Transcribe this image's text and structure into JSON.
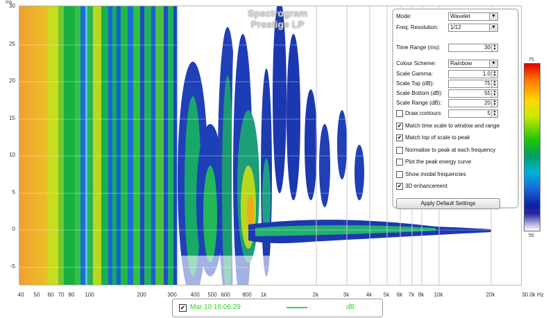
{
  "plot": {
    "title_line1": "Spectrogram",
    "title_line2": "Prestige LP",
    "y_unit": "ms",
    "y_ticks": [
      "30",
      "25",
      "20",
      "15",
      "10",
      "5",
      "0",
      "-5"
    ],
    "x_ticks": [
      "40",
      "50",
      "60",
      "70",
      "80",
      "100",
      "200",
      "300",
      "400",
      "500",
      "600",
      "800",
      "1k",
      "2k",
      "3k",
      "4k",
      "5k",
      "6k",
      "7k",
      "8k",
      "10k",
      "20k",
      "30.0k Hz"
    ]
  },
  "panel": {
    "mode_label": "Mode:",
    "mode_value": "Wavelet",
    "freq_res_label": "Freq. Resolution:",
    "freq_res_value": "1/12",
    "time_range_label": "Time Range (ms):",
    "time_range_value": "30",
    "colour_scheme_label": "Colour Scheme:",
    "colour_scheme_value": "Rainbow",
    "scale_gamma_label": "Scale Gamma:",
    "scale_gamma_value": "1.0",
    "scale_top_label": "Scale Top (dB):",
    "scale_top_value": "75",
    "scale_bottom_label": "Scale Bottom (dB):",
    "scale_bottom_value": "55",
    "scale_range_label": "Scale Range (dB):",
    "scale_range_value": "20",
    "draw_contours_label": "Draw contours",
    "draw_contours_value": "5",
    "match_time_label": "Match time scale to window and range",
    "match_top_label": "Match top of scale to peak",
    "normalise_label": "Normalise to peak at each frequency",
    "plot_peak_label": "Plot the peak energy curve",
    "show_modal_label": "Show modal frequencies",
    "enhancement_label": "3D enhancement",
    "apply_label": "Apply Default Settings",
    "check_mark": "✔",
    "arrow": "▼",
    "spin_up": "▲",
    "spin_down": "▼"
  },
  "colorbar": {
    "top": "75",
    "bottom": "55"
  },
  "legend": {
    "check": "✔",
    "name": "Mar 10 16:06:29",
    "unit": "dB",
    "line_color": "#33dd33"
  }
}
